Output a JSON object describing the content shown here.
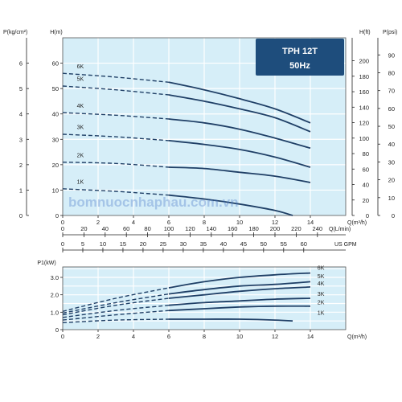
{
  "colors": {
    "plot_bg": "#d6eef8",
    "grid": "#ffffff",
    "curve": "#1f3f66",
    "badge_bg": "#1e4d7c"
  },
  "badge": {
    "model": "TPH 12T",
    "freq": "50Hz"
  },
  "watermark": "bomnuocnhaphau.com.vn",
  "chart_data": [
    {
      "type": "line",
      "panel": "head",
      "xlabel": "Q(m³/h)",
      "x_ticks": [
        0,
        2,
        4,
        6,
        8,
        10,
        12,
        14
      ],
      "xlim": [
        0,
        16
      ],
      "ylabel_left_outer": "P(kg/cm²)",
      "left_outer_ticks": [
        0,
        1,
        2,
        3,
        4,
        5,
        6
      ],
      "ylabel": "H(m)",
      "y_ticks": [
        0,
        10,
        20,
        30,
        40,
        50,
        60
      ],
      "ylim": [
        0,
        70
      ],
      "ylabel_right_inner": "H(ft)",
      "right_inner_ticks": [
        0,
        20,
        40,
        60,
        80,
        100,
        120,
        140,
        160,
        180,
        200
      ],
      "ylabel_right_outer": "P(psi)",
      "right_outer_ticks": [
        0,
        10,
        20,
        30,
        40,
        50,
        60,
        70,
        80,
        90
      ],
      "secondary_x_axes": [
        {
          "label": "Q(L/min)",
          "ticks": [
            0,
            20,
            40,
            60,
            80,
            100,
            120,
            140,
            160,
            180,
            200,
            220,
            240
          ]
        },
        {
          "label": "US GPM",
          "ticks": [
            0,
            5,
            10,
            15,
            20,
            25,
            30,
            35,
            40,
            45,
            50,
            55,
            60
          ]
        }
      ],
      "series": [
        {
          "name": "6K",
          "x": [
            0,
            3,
            6,
            8,
            10,
            12,
            14
          ],
          "y": [
            56,
            54.5,
            52.5,
            49.5,
            46,
            42,
            36.5
          ]
        },
        {
          "name": "5K",
          "x": [
            0,
            3,
            6,
            8,
            10,
            12,
            14
          ],
          "y": [
            51,
            49.5,
            47.5,
            45,
            42,
            38.5,
            33
          ]
        },
        {
          "name": "4K",
          "x": [
            0,
            3,
            6,
            8,
            10,
            12,
            14
          ],
          "y": [
            40.5,
            39.5,
            38,
            36.5,
            34,
            30.5,
            26.5
          ]
        },
        {
          "name": "3K",
          "x": [
            0,
            3,
            6,
            8,
            10,
            12,
            14
          ],
          "y": [
            32,
            31,
            29.5,
            28,
            26,
            23,
            19
          ]
        },
        {
          "name": "2K",
          "x": [
            0,
            3,
            6,
            8,
            10,
            12,
            14
          ],
          "y": [
            21,
            20.5,
            19,
            18.5,
            17,
            15.5,
            13
          ]
        },
        {
          "name": "1K",
          "x": [
            0,
            3,
            6,
            8,
            10,
            12,
            13
          ],
          "y": [
            10.5,
            9.5,
            8,
            6.5,
            4.5,
            2,
            0
          ]
        }
      ],
      "dashed_to_x": 6
    },
    {
      "type": "line",
      "panel": "power",
      "xlabel": "Q(m³/h)",
      "x_ticks": [
        0,
        2,
        4,
        6,
        8,
        10,
        12,
        14
      ],
      "xlim": [
        0,
        16
      ],
      "ylabel": "P1(kW)",
      "y_ticks": [
        0,
        1.0,
        2.0,
        3.0
      ],
      "y_tick_labels": [
        "0",
        "1.0",
        "2.0",
        "3.0"
      ],
      "ylim": [
        0,
        3.6
      ],
      "series": [
        {
          "name": "6K",
          "x": [
            0,
            3,
            6,
            8,
            10,
            12,
            14
          ],
          "y": [
            1.05,
            1.8,
            2.4,
            2.75,
            3.0,
            3.15,
            3.25
          ]
        },
        {
          "name": "5K",
          "x": [
            0,
            3,
            6,
            8,
            10,
            12,
            14
          ],
          "y": [
            0.95,
            1.55,
            2.05,
            2.3,
            2.5,
            2.6,
            2.75
          ]
        },
        {
          "name": "4K",
          "x": [
            0,
            3,
            6,
            8,
            10,
            12,
            14
          ],
          "y": [
            0.85,
            1.4,
            1.8,
            2.0,
            2.2,
            2.35,
            2.45
          ]
        },
        {
          "name": "3K",
          "x": [
            0,
            3,
            6,
            8,
            10,
            12,
            14
          ],
          "y": [
            0.7,
            1.1,
            1.4,
            1.55,
            1.65,
            1.75,
            1.8
          ]
        },
        {
          "name": "2K",
          "x": [
            0,
            3,
            6,
            8,
            10,
            12,
            14
          ],
          "y": [
            0.55,
            0.85,
            1.1,
            1.2,
            1.3,
            1.35,
            1.35
          ]
        },
        {
          "name": "1K",
          "x": [
            0,
            3,
            6,
            8,
            10,
            12,
            13
          ],
          "y": [
            0.4,
            0.55,
            0.6,
            0.6,
            0.6,
            0.55,
            0.5
          ]
        }
      ],
      "dashed_to_x": 6
    }
  ]
}
